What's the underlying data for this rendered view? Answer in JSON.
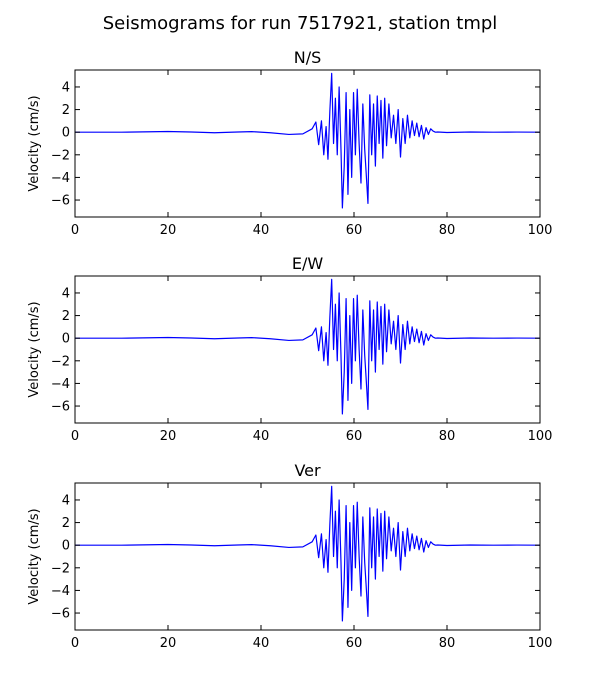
{
  "figure": {
    "title": "Seismograms for run 7517921, station tmpl"
  },
  "colors": {
    "trace": "#0000ff",
    "axes": "#000000",
    "background": "#ffffff"
  },
  "chart_data": [
    {
      "type": "line",
      "title": "N/S",
      "xlabel": "",
      "ylabel": "Velocity (cm/s)",
      "xlim": [
        0,
        100
      ],
      "ylim": [
        -7.5,
        5.5
      ],
      "xticks": [
        "0",
        "20",
        "40",
        "60",
        "80",
        "100"
      ],
      "yticks": [
        "4",
        "2",
        "0",
        "−2",
        "−4",
        "−6"
      ],
      "grid": false,
      "series": [
        {
          "x": [
            0,
            10,
            20,
            25,
            30,
            35,
            38,
            42,
            46,
            49,
            51,
            51.8,
            52.4,
            53,
            53.5,
            54,
            54.4,
            54.8,
            55.2,
            55.6,
            56,
            56.4,
            56.8,
            57.2,
            57.5,
            57.9,
            58.3,
            58.7,
            59.1,
            59.5,
            59.9,
            60.3,
            60.7,
            61.1,
            61.5,
            61.9,
            62.3,
            62.6,
            63,
            63.4,
            63.8,
            64.2,
            64.6,
            65,
            65.4,
            65.8,
            66.2,
            66.6,
            67,
            67.5,
            68,
            68.5,
            69,
            69.5,
            70,
            70.5,
            71,
            71.5,
            72,
            72.5,
            73,
            73.5,
            74,
            74.5,
            75,
            75.5,
            76,
            76.5,
            77,
            77.5,
            78,
            80,
            85,
            90,
            95,
            100
          ],
          "y": [
            0,
            0,
            0.06,
            0.02,
            -0.05,
            0.02,
            0.05,
            -0.05,
            -0.2,
            -0.15,
            0.3,
            0.9,
            -1.1,
            1.0,
            -2.0,
            0.5,
            -2.4,
            1.8,
            5.2,
            -1.0,
            3.0,
            -2.0,
            4.0,
            -1.5,
            -6.7,
            -3.0,
            3.5,
            -5.5,
            2.0,
            -4.0,
            3.5,
            -2.0,
            3.8,
            -1.0,
            -4.5,
            2.5,
            -1.5,
            -3.5,
            -6.3,
            3.3,
            -2.0,
            2.5,
            -3.0,
            3.2,
            -1.0,
            2.8,
            -2.3,
            3.0,
            -1.2,
            2.5,
            -0.5,
            1.5,
            -1.0,
            2.0,
            -2.2,
            1.2,
            -1.0,
            1.5,
            -0.5,
            1.0,
            -0.3,
            0.8,
            -0.4,
            0.6,
            -0.6,
            0.4,
            -0.2,
            0.3,
            0.1,
            0.0,
            0.02,
            -0.03,
            0.02,
            0.0,
            0.01,
            0.0
          ]
        }
      ]
    },
    {
      "type": "line",
      "title": "E/W",
      "xlabel": "",
      "ylabel": "Velocity (cm/s)",
      "xlim": [
        0,
        100
      ],
      "ylim": [
        -7.5,
        5.5
      ],
      "xticks": [
        "0",
        "20",
        "40",
        "60",
        "80",
        "100"
      ],
      "yticks": [
        "4",
        "2",
        "0",
        "−2",
        "−4",
        "−6"
      ],
      "grid": false,
      "series": [
        {
          "x": [
            0,
            10,
            20,
            25,
            30,
            35,
            38,
            42,
            46,
            49,
            51,
            51.8,
            52.4,
            53,
            53.5,
            54,
            54.4,
            54.8,
            55.2,
            55.6,
            56,
            56.4,
            56.8,
            57.2,
            57.5,
            57.9,
            58.3,
            58.7,
            59.1,
            59.5,
            59.9,
            60.3,
            60.7,
            61.1,
            61.5,
            61.9,
            62.3,
            62.6,
            63,
            63.4,
            63.8,
            64.2,
            64.6,
            65,
            65.4,
            65.8,
            66.2,
            66.6,
            67,
            67.5,
            68,
            68.5,
            69,
            69.5,
            70,
            70.5,
            71,
            71.5,
            72,
            72.5,
            73,
            73.5,
            74,
            74.5,
            75,
            75.5,
            76,
            76.5,
            77,
            77.5,
            78,
            80,
            85,
            90,
            95,
            100
          ],
          "y": [
            0,
            0,
            0.06,
            0.02,
            -0.05,
            0.02,
            0.05,
            -0.05,
            -0.2,
            -0.15,
            0.3,
            0.9,
            -1.1,
            1.0,
            -2.0,
            0.5,
            -2.4,
            1.8,
            5.2,
            -1.0,
            3.0,
            -2.0,
            4.0,
            -1.5,
            -6.7,
            -3.0,
            3.5,
            -5.5,
            2.0,
            -4.0,
            3.5,
            -2.0,
            3.8,
            -1.0,
            -4.5,
            2.5,
            -1.5,
            -3.5,
            -6.3,
            3.3,
            -2.0,
            2.5,
            -3.0,
            3.2,
            -1.0,
            2.8,
            -2.3,
            3.0,
            -1.2,
            2.5,
            -0.5,
            1.5,
            -1.0,
            2.0,
            -2.2,
            1.2,
            -1.0,
            1.5,
            -0.5,
            1.0,
            -0.3,
            0.8,
            -0.4,
            0.6,
            -0.6,
            0.4,
            -0.2,
            0.3,
            0.1,
            0.0,
            0.02,
            -0.03,
            0.02,
            0.0,
            0.01,
            0.0
          ]
        }
      ]
    },
    {
      "type": "line",
      "title": "Ver",
      "xlabel": "",
      "ylabel": "Velocity (cm/s)",
      "xlim": [
        0,
        100
      ],
      "ylim": [
        -7.5,
        5.5
      ],
      "xticks": [
        "0",
        "20",
        "40",
        "60",
        "80",
        "100"
      ],
      "yticks": [
        "4",
        "2",
        "0",
        "−2",
        "−4",
        "−6"
      ],
      "grid": false,
      "series": [
        {
          "x": [
            0,
            10,
            20,
            25,
            30,
            35,
            38,
            42,
            46,
            49,
            51,
            51.8,
            52.4,
            53,
            53.5,
            54,
            54.4,
            54.8,
            55.2,
            55.6,
            56,
            56.4,
            56.8,
            57.2,
            57.5,
            57.9,
            58.3,
            58.7,
            59.1,
            59.5,
            59.9,
            60.3,
            60.7,
            61.1,
            61.5,
            61.9,
            62.3,
            62.6,
            63,
            63.4,
            63.8,
            64.2,
            64.6,
            65,
            65.4,
            65.8,
            66.2,
            66.6,
            67,
            67.5,
            68,
            68.5,
            69,
            69.5,
            70,
            70.5,
            71,
            71.5,
            72,
            72.5,
            73,
            73.5,
            74,
            74.5,
            75,
            75.5,
            76,
            76.5,
            77,
            77.5,
            78,
            80,
            85,
            90,
            95,
            100
          ],
          "y": [
            0,
            0,
            0.06,
            0.02,
            -0.05,
            0.02,
            0.05,
            -0.05,
            -0.2,
            -0.15,
            0.3,
            0.9,
            -1.1,
            1.0,
            -2.0,
            0.5,
            -2.4,
            1.8,
            5.2,
            -1.0,
            3.0,
            -2.0,
            4.0,
            -1.5,
            -6.7,
            -3.0,
            3.5,
            -5.5,
            2.0,
            -4.0,
            3.5,
            -2.0,
            3.8,
            -1.0,
            -4.5,
            2.5,
            -1.5,
            -3.5,
            -6.3,
            3.3,
            -2.0,
            2.5,
            -3.0,
            3.2,
            -1.0,
            2.8,
            -2.3,
            3.0,
            -1.2,
            2.5,
            -0.5,
            1.5,
            -1.0,
            2.0,
            -2.2,
            1.2,
            -1.0,
            1.5,
            -0.5,
            1.0,
            -0.3,
            0.8,
            -0.4,
            0.6,
            -0.6,
            0.4,
            -0.2,
            0.3,
            0.1,
            0.0,
            0.02,
            -0.03,
            0.02,
            0.0,
            0.01,
            0.0
          ]
        }
      ]
    }
  ]
}
